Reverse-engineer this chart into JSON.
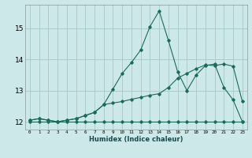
{
  "xlabel": "Humidex (Indice chaleur)",
  "bg_color": "#cce8e8",
  "grid_color": "#aacccc",
  "line_color": "#1a6b5a",
  "xlim": [
    -0.5,
    23.5
  ],
  "ylim": [
    11.75,
    15.75
  ],
  "xticks": [
    0,
    1,
    2,
    3,
    4,
    5,
    6,
    7,
    8,
    9,
    10,
    11,
    12,
    13,
    14,
    15,
    16,
    17,
    18,
    19,
    20,
    21,
    22,
    23
  ],
  "yticks": [
    12,
    13,
    14,
    15
  ],
  "line1_x": [
    0,
    1,
    2,
    3,
    4,
    5,
    6,
    7,
    8,
    9,
    10,
    11,
    12,
    13,
    14,
    15,
    16,
    17,
    18,
    19,
    20,
    21,
    22,
    23
  ],
  "line1_y": [
    12.0,
    12.0,
    12.0,
    12.0,
    12.0,
    12.0,
    12.0,
    12.0,
    12.0,
    12.0,
    12.0,
    12.0,
    12.0,
    12.0,
    12.0,
    12.0,
    12.0,
    12.0,
    12.0,
    12.0,
    12.0,
    12.0,
    12.0,
    12.0
  ],
  "line2_x": [
    0,
    1,
    2,
    3,
    4,
    5,
    6,
    7,
    8,
    9,
    10,
    11,
    12,
    13,
    14,
    15,
    16,
    17,
    18,
    19,
    20,
    21,
    22,
    23
  ],
  "line2_y": [
    12.05,
    12.1,
    12.05,
    12.0,
    12.05,
    12.1,
    12.2,
    12.3,
    12.55,
    12.6,
    12.65,
    12.72,
    12.78,
    12.85,
    12.9,
    13.1,
    13.4,
    13.55,
    13.7,
    13.82,
    13.8,
    13.85,
    13.78,
    12.65
  ],
  "line3_x": [
    0,
    1,
    2,
    3,
    4,
    5,
    6,
    7,
    8,
    9,
    10,
    11,
    12,
    13,
    14,
    15,
    16,
    17,
    18,
    19,
    20,
    21,
    22,
    23
  ],
  "line3_y": [
    12.05,
    12.1,
    12.05,
    12.0,
    12.05,
    12.1,
    12.2,
    12.3,
    12.55,
    13.05,
    13.55,
    13.9,
    14.3,
    15.05,
    15.55,
    14.6,
    13.6,
    13.0,
    13.5,
    13.8,
    13.85,
    13.1,
    12.7,
    12.0
  ]
}
